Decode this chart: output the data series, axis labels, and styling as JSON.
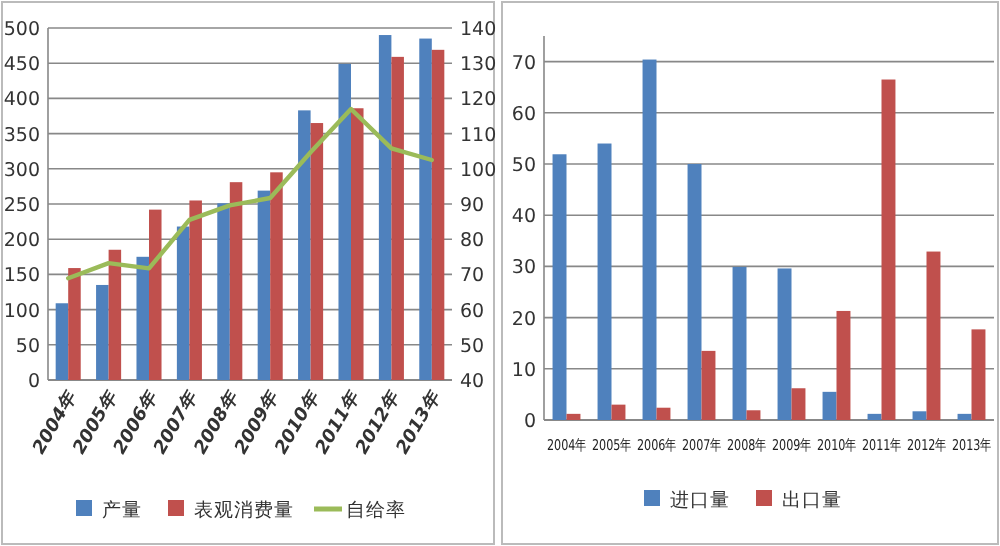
{
  "chart_data": [
    {
      "type": "bar",
      "categories": [
        "2004年",
        "2005年",
        "2006年",
        "2007年",
        "2008年",
        "2009年",
        "2010年",
        "2011年",
        "2012年",
        "2013年"
      ],
      "series": [
        {
          "name": "产量",
          "color": "#4f81bd",
          "values": [
            109,
            135,
            175,
            218,
            251,
            269,
            383,
            449,
            490,
            485
          ]
        },
        {
          "name": "表观消费量",
          "color": "#c0504d",
          "values": [
            159,
            185,
            242,
            255,
            281,
            295,
            365,
            386,
            459,
            469
          ]
        },
        {
          "name": "自给率",
          "type": "line",
          "axis": "y2",
          "color": "#9bbb59",
          "marker": "none",
          "values": [
            68.9,
            73.2,
            71.7,
            85.5,
            89.6,
            91.7,
            104.7,
            117,
            105.8,
            102.5
          ]
        }
      ],
      "ylim": [
        0,
        500
      ],
      "yticks": [
        0,
        50,
        100,
        150,
        200,
        250,
        300,
        350,
        400,
        450,
        500
      ],
      "y2lim": [
        40,
        140
      ],
      "y2ticks": [
        40,
        50,
        60,
        70,
        80,
        90,
        100,
        110,
        120,
        130,
        140
      ],
      "grid": "y",
      "legend": "bottom"
    },
    {
      "type": "bar",
      "categories": [
        "2004年",
        "2005年",
        "2006年",
        "2007年",
        "2008年",
        "2009年",
        "2010年",
        "2011年",
        "2012年",
        "2013年"
      ],
      "series": [
        {
          "name": "进口量",
          "color": "#4f81bd",
          "values": [
            51.9,
            54,
            70.4,
            50,
            29.9,
            29.6,
            5.5,
            1.2,
            1.7,
            1.2
          ]
        },
        {
          "name": "出口量",
          "color": "#c0504d",
          "values": [
            1.2,
            3,
            2.4,
            13.5,
            1.9,
            6.2,
            21.3,
            66.5,
            32.9,
            17.7
          ]
        }
      ],
      "ylim": [
        0,
        75
      ],
      "yticks": [
        0,
        10,
        20,
        30,
        40,
        50,
        60,
        70
      ],
      "grid": "y",
      "legend": "bottom"
    }
  ]
}
